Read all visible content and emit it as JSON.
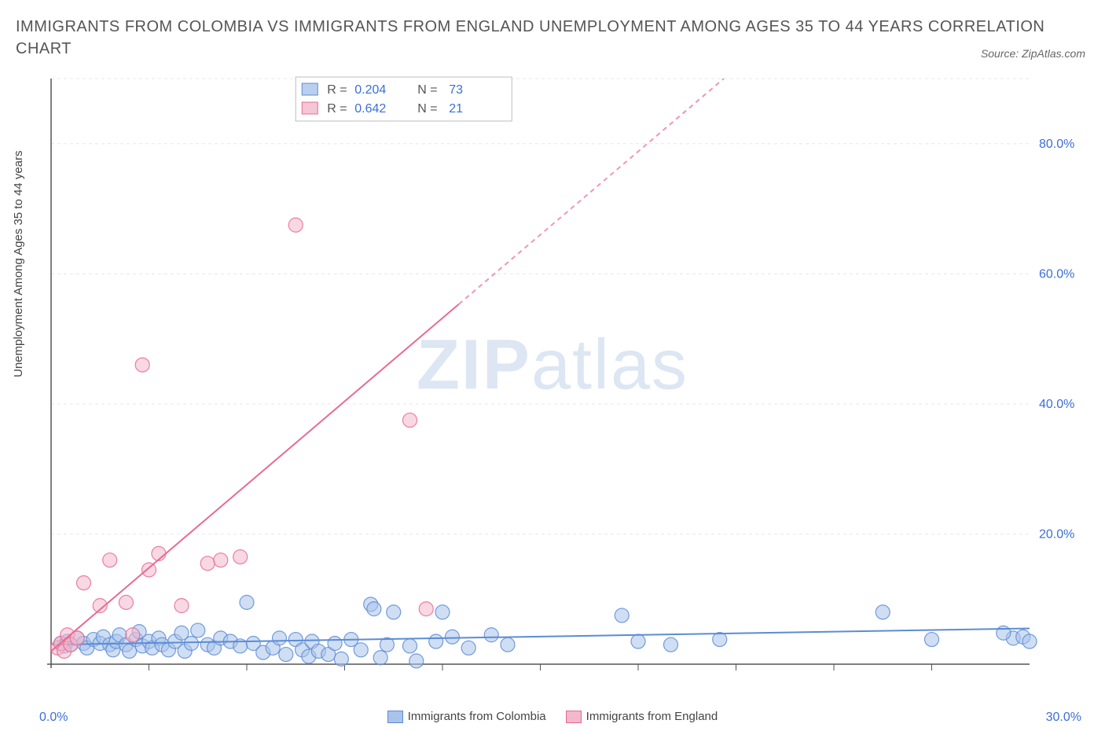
{
  "title": "IMMIGRANTS FROM COLOMBIA VS IMMIGRANTS FROM ENGLAND UNEMPLOYMENT AMONG AGES 35 TO 44 YEARS CORRELATION CHART",
  "source": "Source: ZipAtlas.com",
  "ylabel": "Unemployment Among Ages 35 to 44 years",
  "watermark_bold": "ZIP",
  "watermark_rest": "atlas",
  "chart": {
    "type": "scatter",
    "xlim": [
      0,
      30
    ],
    "ylim": [
      0,
      90
    ],
    "x_ticks": [
      0,
      30
    ],
    "x_tick_labels": [
      "0.0%",
      "30.0%"
    ],
    "x_minor_ticks": [
      3,
      6,
      9,
      12,
      15,
      18,
      21,
      24,
      27
    ],
    "y_ticks": [
      20,
      40,
      60,
      80
    ],
    "y_tick_labels": [
      "20.0%",
      "40.0%",
      "60.0%",
      "80.0%"
    ],
    "background_color": "#ffffff",
    "grid_color": "#e8e8e8",
    "axis_color": "#555555",
    "tick_label_color": "#3b6fd6",
    "label_fontsize": 15,
    "tick_fontsize": 16,
    "marker_radius": 9,
    "marker_opacity": 0.55,
    "line_width": 2
  },
  "series": [
    {
      "name": "Immigrants from Colombia",
      "color": "#5b8cd6",
      "fill": "#a9c3ea",
      "stroke": "#5b8cd6",
      "R": "0.204",
      "N": "73",
      "trend": {
        "x1": 0,
        "y1": 3.0,
        "x2": 30,
        "y2": 5.5,
        "dash_after_x": 30
      },
      "points": [
        [
          0.3,
          3.2
        ],
        [
          0.4,
          2.8
        ],
        [
          0.5,
          3.5
        ],
        [
          0.6,
          3.0
        ],
        [
          0.8,
          4.0
        ],
        [
          1.0,
          3.2
        ],
        [
          1.1,
          2.5
        ],
        [
          1.3,
          3.8
        ],
        [
          1.5,
          3.2
        ],
        [
          1.6,
          4.2
        ],
        [
          1.8,
          3.0
        ],
        [
          1.9,
          2.2
        ],
        [
          2.0,
          3.5
        ],
        [
          2.1,
          4.5
        ],
        [
          2.3,
          3.0
        ],
        [
          2.4,
          2.0
        ],
        [
          2.6,
          3.8
        ],
        [
          2.7,
          5.0
        ],
        [
          2.8,
          2.8
        ],
        [
          3.0,
          3.5
        ],
        [
          3.1,
          2.5
        ],
        [
          3.3,
          4.0
        ],
        [
          3.4,
          3.0
        ],
        [
          3.6,
          2.2
        ],
        [
          3.8,
          3.5
        ],
        [
          4.0,
          4.8
        ],
        [
          4.1,
          2.0
        ],
        [
          4.3,
          3.2
        ],
        [
          4.5,
          5.2
        ],
        [
          4.8,
          3.0
        ],
        [
          5.0,
          2.5
        ],
        [
          5.2,
          4.0
        ],
        [
          5.5,
          3.5
        ],
        [
          5.8,
          2.8
        ],
        [
          6.0,
          9.5
        ],
        [
          6.2,
          3.2
        ],
        [
          6.5,
          1.8
        ],
        [
          6.8,
          2.5
        ],
        [
          7.0,
          4.0
        ],
        [
          7.2,
          1.5
        ],
        [
          7.5,
          3.8
        ],
        [
          7.7,
          2.2
        ],
        [
          7.9,
          1.2
        ],
        [
          8.0,
          3.5
        ],
        [
          8.2,
          2.0
        ],
        [
          8.5,
          1.5
        ],
        [
          8.7,
          3.2
        ],
        [
          8.9,
          0.8
        ],
        [
          9.2,
          3.8
        ],
        [
          9.5,
          2.2
        ],
        [
          9.8,
          9.2
        ],
        [
          9.9,
          8.5
        ],
        [
          10.1,
          1.0
        ],
        [
          10.3,
          3.0
        ],
        [
          10.5,
          8.0
        ],
        [
          11.0,
          2.8
        ],
        [
          11.2,
          0.5
        ],
        [
          11.8,
          3.5
        ],
        [
          12.0,
          8.0
        ],
        [
          12.3,
          4.2
        ],
        [
          12.8,
          2.5
        ],
        [
          13.5,
          4.5
        ],
        [
          14.0,
          3.0
        ],
        [
          17.5,
          7.5
        ],
        [
          18.0,
          3.5
        ],
        [
          19.0,
          3.0
        ],
        [
          20.5,
          3.8
        ],
        [
          25.5,
          8.0
        ],
        [
          27.0,
          3.8
        ],
        [
          29.5,
          4.0
        ],
        [
          29.8,
          4.2
        ],
        [
          30.0,
          3.5
        ],
        [
          29.2,
          4.8
        ]
      ]
    },
    {
      "name": "Immigrants from England",
      "color": "#e86b91",
      "fill": "#f3b8cc",
      "stroke": "#e86b91",
      "R": "0.642",
      "N": "21",
      "trend": {
        "x1": 0,
        "y1": 2.0,
        "x2": 30,
        "y2": 130,
        "dash_after_x": 12.5
      },
      "points": [
        [
          0.2,
          2.5
        ],
        [
          0.3,
          3.2
        ],
        [
          0.4,
          2.0
        ],
        [
          0.5,
          4.5
        ],
        [
          0.6,
          3.0
        ],
        [
          0.8,
          4.0
        ],
        [
          1.0,
          12.5
        ],
        [
          1.5,
          9.0
        ],
        [
          1.8,
          16.0
        ],
        [
          2.3,
          9.5
        ],
        [
          2.5,
          4.5
        ],
        [
          2.8,
          46.0
        ],
        [
          3.0,
          14.5
        ],
        [
          3.3,
          17.0
        ],
        [
          4.0,
          9.0
        ],
        [
          4.8,
          15.5
        ],
        [
          5.2,
          16.0
        ],
        [
          5.8,
          16.5
        ],
        [
          7.5,
          67.5
        ],
        [
          11.5,
          8.5
        ],
        [
          11.0,
          37.5
        ]
      ]
    }
  ],
  "top_legend": {
    "border_color": "#bcbcbc",
    "bg": "#ffffff",
    "text_color": "#555555",
    "value_color": "#3b6fd6",
    "R_label": "R =",
    "N_label": "N ="
  },
  "bottom_legend": {
    "items": [
      {
        "label": "Immigrants from Colombia",
        "fill": "#a9c3ea",
        "stroke": "#5b8cd6"
      },
      {
        "label": "Immigrants from England",
        "fill": "#f3b8cc",
        "stroke": "#e86b91"
      }
    ]
  }
}
